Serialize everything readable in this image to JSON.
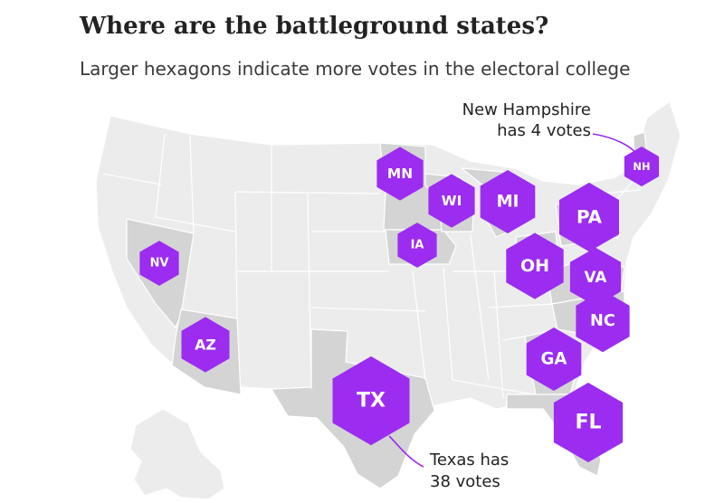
{
  "title": "Where are the battleground states?",
  "subtitle": "Larger hexagons indicate more votes in the electoral college",
  "colors": {
    "hexagon": "#9b2cf0",
    "battleground_state": "#d4d4d4",
    "other_state": "#ececec",
    "state_border": "#ffffff"
  },
  "states": [
    {
      "abbr": "NH",
      "votes": 4
    },
    {
      "abbr": "MN",
      "votes": 10
    },
    {
      "abbr": "WI",
      "votes": 10
    },
    {
      "abbr": "MI",
      "votes": 16
    },
    {
      "abbr": "PA",
      "votes": 20
    },
    {
      "abbr": "IA",
      "votes": 6
    },
    {
      "abbr": "NV",
      "votes": 6
    },
    {
      "abbr": "OH",
      "votes": 18
    },
    {
      "abbr": "VA",
      "votes": 13
    },
    {
      "abbr": "NC",
      "votes": 15
    },
    {
      "abbr": "AZ",
      "votes": 11
    },
    {
      "abbr": "GA",
      "votes": 16
    },
    {
      "abbr": "TX",
      "votes": 38
    },
    {
      "abbr": "FL",
      "votes": 29
    }
  ],
  "annotations": {
    "nh": {
      "line1": "New Hampshire",
      "line2": "has 4 votes"
    },
    "tx": {
      "line1": "Texas has",
      "line2": "38 votes"
    }
  }
}
